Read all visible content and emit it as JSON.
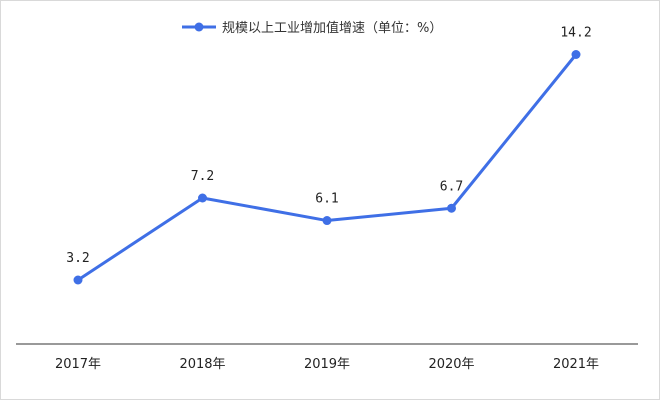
{
  "chart_data": {
    "type": "line",
    "categories": [
      "2017年",
      "2018年",
      "2019年",
      "2020年",
      "2021年"
    ],
    "series": [
      {
        "name": "规模以上工业增加值增速（单位：%）",
        "values": [
          3.2,
          7.2,
          6.1,
          6.7,
          14.2
        ],
        "color": "#3f6fe6"
      }
    ],
    "data_labels": [
      "3.2",
      "7.2",
      "6.1",
      "6.7",
      "14.2"
    ],
    "legend_position": "top-center",
    "grid": false
  }
}
